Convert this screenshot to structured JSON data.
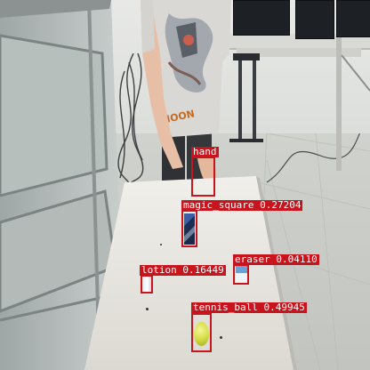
{
  "image": {
    "description_free": true
  },
  "detections": [
    {
      "id": "hand",
      "label": "hand",
      "color": "#c8141c"
    },
    {
      "id": "magic_square",
      "label": "magic_square 0.27204",
      "color": "#c8141c"
    },
    {
      "id": "lotion",
      "label": "lotion 0.16449",
      "color": "#c8141c"
    },
    {
      "id": "eraser",
      "label": "eraser 0.04110",
      "color": "#c8141c"
    },
    {
      "id": "tennis_ball",
      "label": "tennis_ball 0.49945",
      "color": "#c8141c"
    }
  ],
  "shirt_print": "MOON"
}
